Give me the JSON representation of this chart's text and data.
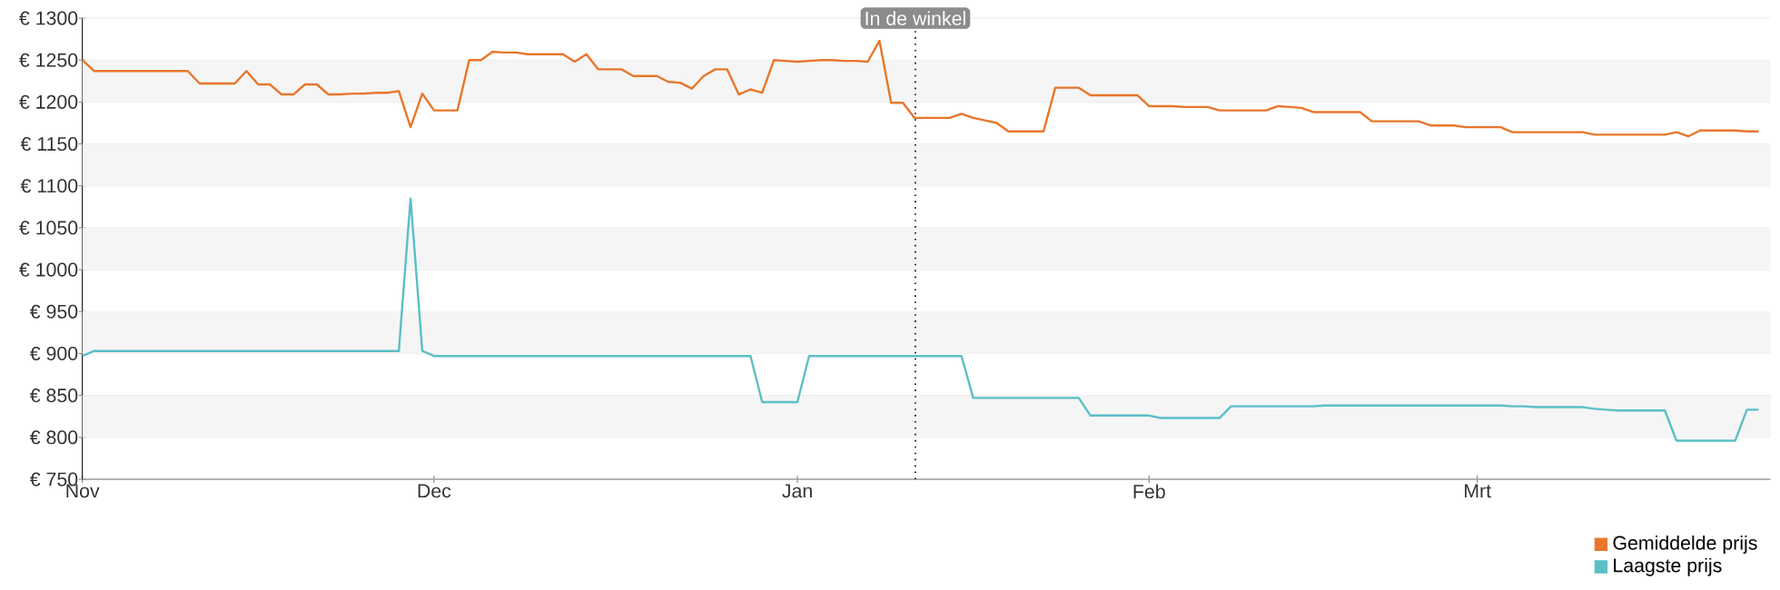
{
  "chart_data": {
    "type": "line",
    "categories": [
      "Nov",
      null,
      null,
      null,
      null,
      null,
      null,
      null,
      null,
      null,
      null,
      null,
      null,
      null,
      null,
      null,
      null,
      null,
      null,
      null,
      null,
      null,
      null,
      null,
      null,
      null,
      null,
      null,
      null,
      null,
      "Dec",
      null,
      null,
      null,
      null,
      null,
      null,
      null,
      null,
      null,
      null,
      null,
      null,
      null,
      null,
      null,
      null,
      null,
      null,
      null,
      null,
      null,
      null,
      null,
      null,
      null,
      null,
      null,
      null,
      null,
      null,
      "Jan",
      null,
      null,
      null,
      null,
      null,
      null,
      null,
      null,
      null,
      null,
      null,
      null,
      null,
      null,
      null,
      null,
      null,
      null,
      null,
      null,
      null,
      null,
      null,
      null,
      null,
      null,
      null,
      null,
      null,
      "Feb",
      null,
      null,
      null,
      null,
      null,
      null,
      null,
      null,
      null,
      null,
      null,
      null,
      null,
      null,
      null,
      null,
      null,
      null,
      null,
      null,
      null,
      null,
      null,
      null,
      null,
      null,
      null,
      "Mrt",
      null,
      null,
      null,
      null,
      null,
      null,
      null,
      null,
      null,
      null,
      null,
      null,
      null,
      null,
      null,
      null,
      null,
      null,
      null,
      null,
      null,
      null,
      null,
      null
    ],
    "ylim": [
      750,
      1300
    ],
    "yticks": [
      {
        "value": 750,
        "label": "€ 750"
      },
      {
        "value": 800,
        "label": "€ 800"
      },
      {
        "value": 850,
        "label": "€ 850"
      },
      {
        "value": 900,
        "label": "€ 900"
      },
      {
        "value": 950,
        "label": "€ 950"
      },
      {
        "value": 1000,
        "label": "€ 1000"
      },
      {
        "value": 1050,
        "label": "€ 1050"
      },
      {
        "value": 1100,
        "label": "€ 1100"
      },
      {
        "value": 1150,
        "label": "€ 1150"
      },
      {
        "value": 1200,
        "label": "€ 1200"
      },
      {
        "value": 1250,
        "label": "€ 1250"
      },
      {
        "value": 1300,
        "label": "€ 1300"
      }
    ],
    "grid": "y",
    "legend": "bottom right",
    "marker": "none",
    "line_style": "solid",
    "annotations": [
      "In de winkel"
    ],
    "series": [
      {
        "name": "Gemiddelde prijs",
        "color": "#e8762b",
        "values": [
          1250,
          1237,
          1237,
          1237,
          1237,
          1237,
          1237,
          1237,
          1237,
          1237,
          1222,
          1222,
          1222,
          1222,
          1237,
          1221,
          1221,
          1209,
          1209,
          1221,
          1221,
          1209,
          1209,
          1210,
          1210,
          1211,
          1211,
          1213,
          1170,
          1210,
          1190,
          1190,
          1190,
          1250,
          1250,
          1260,
          1259,
          1259,
          1257,
          1257,
          1257,
          1257,
          1248,
          1257,
          1239,
          1239,
          1239,
          1231,
          1231,
          1231,
          1224,
          1223,
          1216,
          1231,
          1239,
          1239,
          1209,
          1215,
          1211,
          1250,
          1249,
          1248,
          1249,
          1250,
          1250,
          1249,
          1249,
          1248,
          1273,
          1199,
          1199,
          1181,
          1181,
          1181,
          1181,
          1186,
          1181,
          1178,
          1175,
          1165,
          1165,
          1165,
          1165,
          1217,
          1217,
          1217,
          1208,
          1208,
          1208,
          1208,
          1208,
          1195,
          1195,
          1195,
          1194,
          1194,
          1194,
          1190,
          1190,
          1190,
          1190,
          1190,
          1195,
          1194,
          1193,
          1188,
          1188,
          1188,
          1188,
          1188,
          1177,
          1177,
          1177,
          1177,
          1177,
          1172,
          1172,
          1172,
          1170,
          1170,
          1170,
          1170,
          1164,
          1164,
          1164,
          1164,
          1164,
          1164,
          1164,
          1161,
          1161,
          1161,
          1161,
          1161,
          1161,
          1161,
          1164,
          1159,
          1166,
          1166,
          1166,
          1166,
          1165,
          1165
        ]
      },
      {
        "name": "Laagste prijs",
        "color": "#5bbfc6",
        "values": [
          897,
          903,
          903,
          903,
          903,
          903,
          903,
          903,
          903,
          903,
          903,
          903,
          903,
          903,
          903,
          903,
          903,
          903,
          903,
          903,
          903,
          903,
          903,
          903,
          903,
          903,
          903,
          903,
          1085,
          903,
          897,
          897,
          897,
          897,
          897,
          897,
          897,
          897,
          897,
          897,
          897,
          897,
          897,
          897,
          897,
          897,
          897,
          897,
          897,
          897,
          897,
          897,
          897,
          897,
          897,
          897,
          897,
          897,
          842,
          842,
          842,
          842,
          897,
          897,
          897,
          897,
          897,
          897,
          897,
          897,
          897,
          897,
          897,
          897,
          897,
          897,
          847,
          847,
          847,
          847,
          847,
          847,
          847,
          847,
          847,
          847,
          826,
          826,
          826,
          826,
          826,
          826,
          823,
          823,
          823,
          823,
          823,
          823,
          837,
          837,
          837,
          837,
          837,
          837,
          837,
          837,
          838,
          838,
          838,
          838,
          838,
          838,
          838,
          838,
          838,
          838,
          838,
          838,
          838,
          838,
          838,
          838,
          837,
          837,
          836,
          836,
          836,
          836,
          836,
          834,
          833,
          832,
          832,
          832,
          832,
          832,
          796,
          796,
          796,
          796,
          796,
          796,
          833,
          833
        ]
      }
    ]
  }
}
